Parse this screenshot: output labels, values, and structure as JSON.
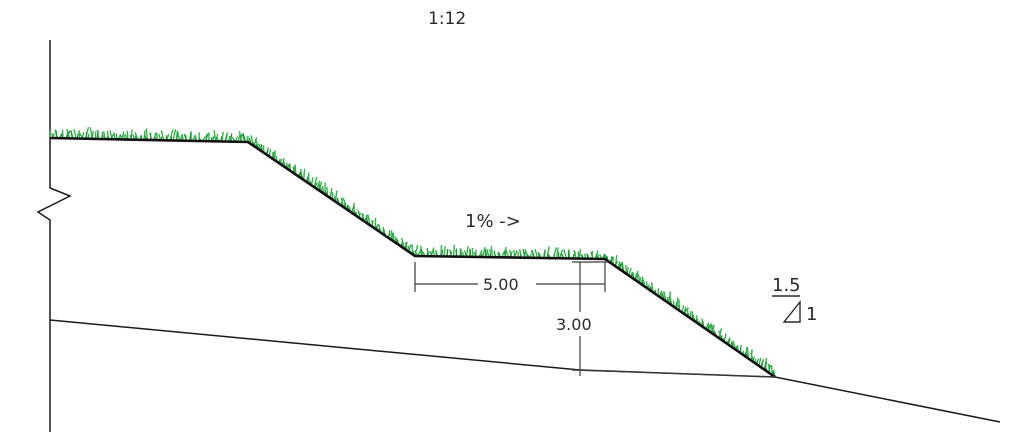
{
  "scale_label": "1:12",
  "grade_label": "1% ->",
  "bench_width_label": "5.00",
  "bench_height_label": "3.00",
  "slope_ratio": {
    "vertical": "1.5",
    "horizontal": "1"
  },
  "colors": {
    "line": "#1a1a1a",
    "grass": "#2fb548",
    "grass_dark": "#1f8f34",
    "dimension": "#3a3a3a",
    "background": "#ffffff"
  }
}
